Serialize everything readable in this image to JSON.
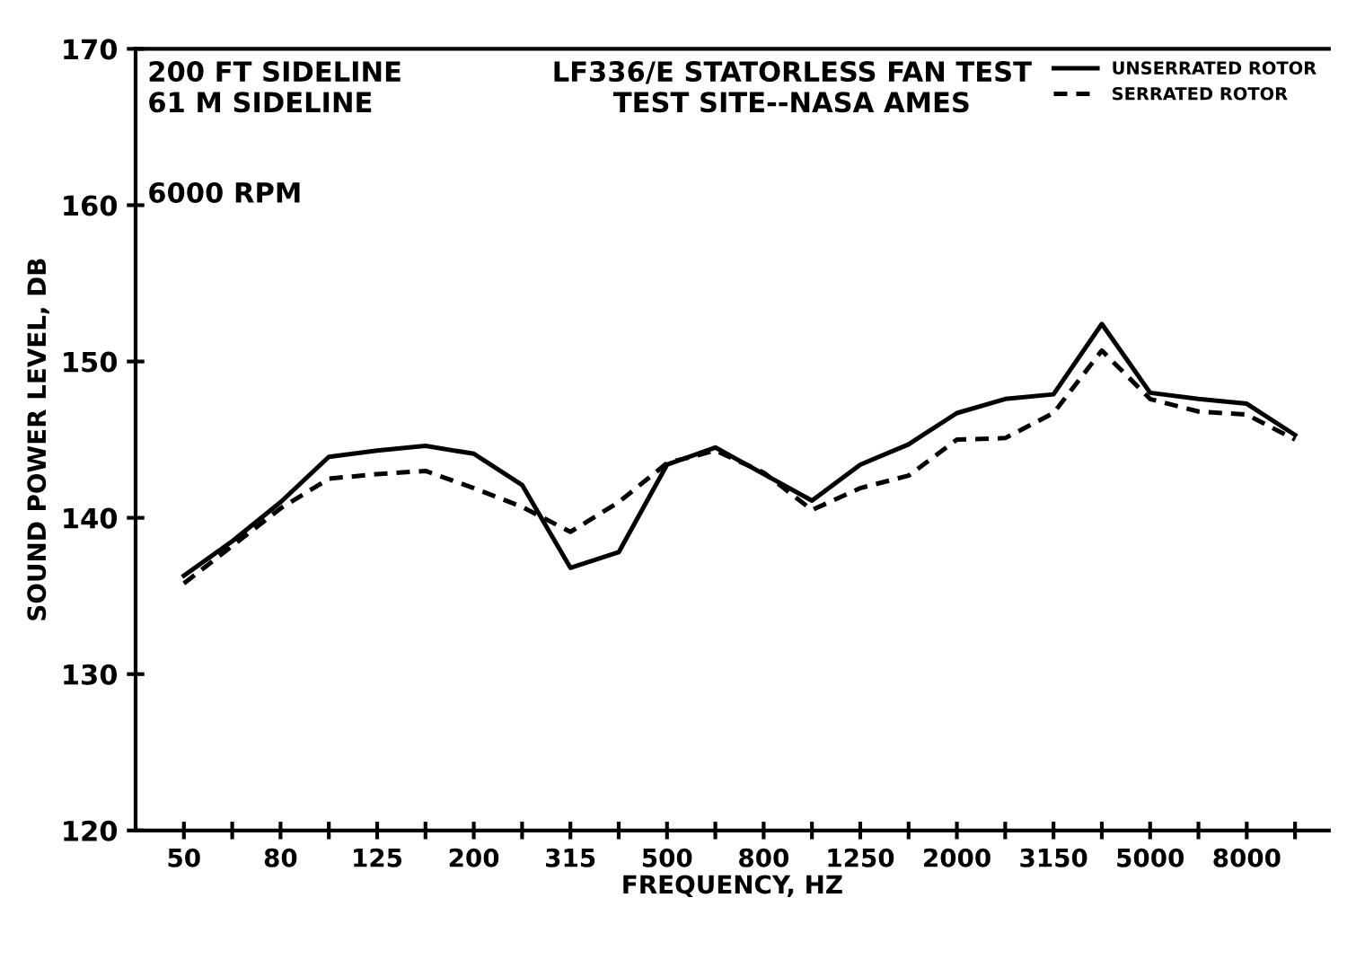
{
  "chart_data": {
    "type": "line",
    "title": "LF336/E STATORLESS FAN TEST\nTEST SITE--NASA AMES",
    "xlabel": "FREQUENCY, HZ",
    "ylabel": "SOUND POWER LEVEL, DB",
    "annotations": [
      "200 FT SIDELINE\n61 M SIDELINE",
      "6000 RPM"
    ],
    "categories": [
      "50",
      null,
      "80",
      null,
      "125",
      null,
      "200",
      null,
      "315",
      null,
      "500",
      null,
      "800",
      null,
      "1250",
      null,
      "2000",
      null,
      "3150",
      null,
      "5000",
      null,
      "8000",
      null
    ],
    "series": [
      {
        "name": "UNSERRATED ROTOR",
        "color": "#000000",
        "line_style": "solid",
        "values": [
          136.3,
          138.5,
          141.0,
          143.9,
          144.3,
          144.6,
          144.1,
          142.1,
          136.8,
          137.8,
          143.4,
          144.5,
          142.8,
          141.1,
          143.4,
          144.7,
          146.7,
          147.6,
          147.9,
          152.4,
          148.0,
          147.6,
          147.3,
          145.3
        ]
      },
      {
        "name": "SERRATED ROTOR",
        "color": "#000000",
        "line_style": "dashed",
        "values": [
          135.8,
          138.2,
          140.6,
          142.5,
          142.8,
          143.0,
          141.9,
          140.7,
          139.1,
          141.0,
          143.5,
          144.3,
          142.9,
          140.5,
          141.9,
          142.7,
          145.0,
          145.1,
          146.7,
          150.7,
          147.6,
          146.8,
          146.6,
          145.0
        ]
      }
    ],
    "ylim": [
      120,
      170
    ],
    "yticks": [
      120,
      130,
      140,
      150,
      160,
      170
    ],
    "grid": false,
    "legend": "top right",
    "marker": "none"
  }
}
